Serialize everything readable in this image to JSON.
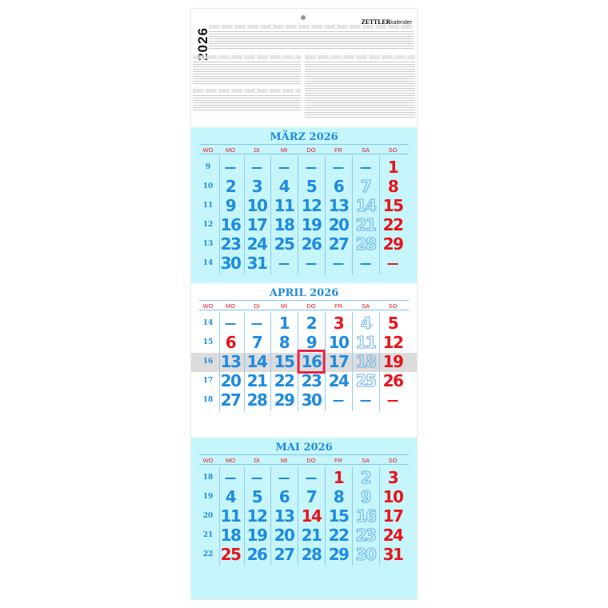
{
  "header": {
    "year": "2026",
    "brand": "ZETTLER",
    "brand_suffix": "kalender"
  },
  "weekday_header": [
    "WO",
    "MO",
    "DI",
    "MI",
    "DO",
    "FR",
    "SA",
    "SO"
  ],
  "colors": {
    "blue": "#1e8be0",
    "red": "#e8141c",
    "cyan": "#c6f6fb",
    "today_box": "#e8234a"
  },
  "today": {
    "month": 1,
    "day": 16,
    "week": 16
  },
  "months": [
    {
      "title": "MÄRZ 2026",
      "background": "cyan",
      "holidays": [],
      "weeks": [
        {
          "wk": "9",
          "days": [
            null,
            null,
            null,
            null,
            null,
            null,
            1
          ]
        },
        {
          "wk": "10",
          "days": [
            2,
            3,
            4,
            5,
            6,
            7,
            8
          ]
        },
        {
          "wk": "11",
          "days": [
            9,
            10,
            11,
            12,
            13,
            14,
            15
          ]
        },
        {
          "wk": "12",
          "days": [
            16,
            17,
            18,
            19,
            20,
            21,
            22
          ]
        },
        {
          "wk": "13",
          "days": [
            23,
            24,
            25,
            26,
            27,
            28,
            29
          ]
        },
        {
          "wk": "14",
          "days": [
            30,
            31,
            null,
            null,
            null,
            null,
            null
          ]
        }
      ]
    },
    {
      "title": "APRIL 2026",
      "background": "white",
      "holidays": [
        3,
        6
      ],
      "weeks": [
        {
          "wk": "14",
          "days": [
            null,
            null,
            1,
            2,
            3,
            4,
            5
          ]
        },
        {
          "wk": "15",
          "days": [
            6,
            7,
            8,
            9,
            10,
            11,
            12
          ]
        },
        {
          "wk": "16",
          "days": [
            13,
            14,
            15,
            16,
            17,
            18,
            19
          ]
        },
        {
          "wk": "17",
          "days": [
            20,
            21,
            22,
            23,
            24,
            25,
            26
          ]
        },
        {
          "wk": "18",
          "days": [
            27,
            28,
            29,
            30,
            null,
            null,
            null
          ]
        }
      ]
    },
    {
      "title": "MAI 2026",
      "background": "cyan",
      "holidays": [
        1,
        14,
        25
      ],
      "weeks": [
        {
          "wk": "18",
          "days": [
            null,
            null,
            null,
            null,
            1,
            2,
            3
          ]
        },
        {
          "wk": "19",
          "days": [
            4,
            5,
            6,
            7,
            8,
            9,
            10
          ]
        },
        {
          "wk": "20",
          "days": [
            11,
            12,
            13,
            14,
            15,
            16,
            17
          ]
        },
        {
          "wk": "21",
          "days": [
            18,
            19,
            20,
            21,
            22,
            23,
            24
          ]
        },
        {
          "wk": "22",
          "days": [
            25,
            26,
            27,
            28,
            29,
            30,
            31
          ]
        }
      ]
    }
  ]
}
